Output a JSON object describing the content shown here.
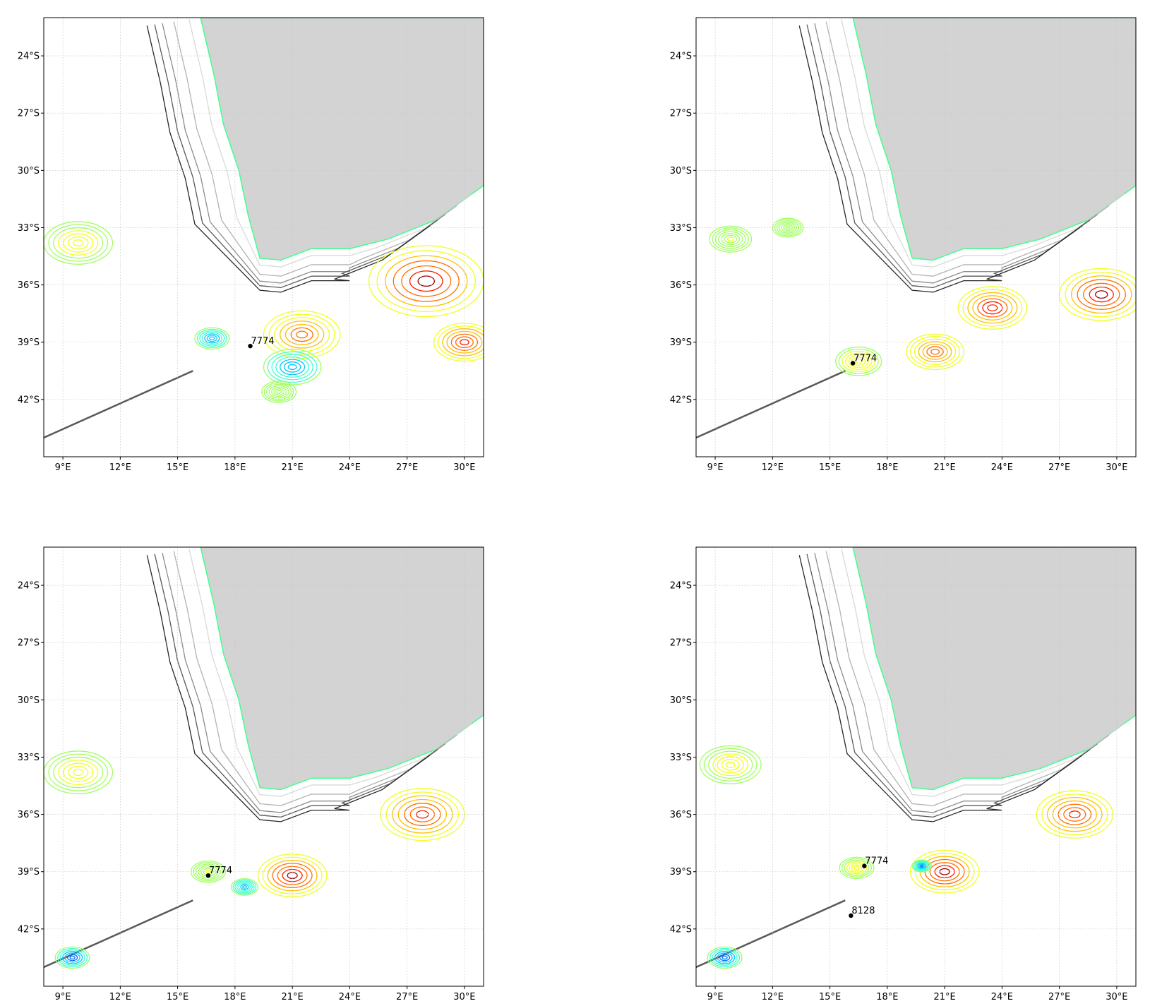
{
  "figure": {
    "land_color": "#d3d3d3",
    "grid_color": "#c8c8c8",
    "frame_color": "#000000",
    "bathymetry_colors": [
      "#d9d9d9",
      "#b3b3b3",
      "#8c8c8c",
      "#595959",
      "#262626"
    ],
    "contour_colormap": [
      "#0000cc",
      "#0070ff",
      "#00c8ff",
      "#40ffd0",
      "#a0ff60",
      "#f0ff20",
      "#ffc000",
      "#ff7000",
      "#ff2000",
      "#a00000"
    ],
    "float_marker_color": "#000000"
  },
  "chart_data": {
    "type": "map",
    "layout": "2x2 panels",
    "lon_range": [
      8,
      31
    ],
    "lat_range": [
      -45,
      -22
    ],
    "x_ticks": [
      "9°E",
      "12°E",
      "15°E",
      "18°E",
      "21°E",
      "24°E",
      "27°E",
      "30°E"
    ],
    "y_ticks": [
      "24°S",
      "27°S",
      "30°S",
      "33°S",
      "36°S",
      "39°S",
      "42°S"
    ],
    "x_tick_values": [
      9,
      12,
      15,
      18,
      21,
      24,
      27,
      30
    ],
    "y_tick_values": [
      -24,
      -27,
      -30,
      -33,
      -36,
      -39,
      -42
    ],
    "grid": true,
    "panels": [
      {
        "floats": [
          {
            "label": "7774",
            "lon": 18.8,
            "lat": -39.2
          }
        ],
        "features": [
          {
            "lon": 28.0,
            "lat": -35.8,
            "level": 0.95,
            "size": 3.0
          },
          {
            "lon": 21.5,
            "lat": -38.6,
            "level": 0.8,
            "size": 2.0
          },
          {
            "lon": 30.0,
            "lat": -39.0,
            "level": 0.85,
            "size": 1.6
          },
          {
            "lon": 9.8,
            "lat": -33.8,
            "level": 0.55,
            "size": 1.8
          },
          {
            "lon": 16.8,
            "lat": -38.8,
            "level": 0.2,
            "size": 0.9
          },
          {
            "lon": 21.0,
            "lat": -40.3,
            "level": 0.18,
            "size": 1.5
          },
          {
            "lon": 20.3,
            "lat": -41.6,
            "level": 0.45,
            "size": 0.9
          }
        ]
      },
      {
        "floats": [
          {
            "label": "7774",
            "lon": 16.2,
            "lat": -40.1
          }
        ],
        "features": [
          {
            "lon": 29.2,
            "lat": -36.5,
            "level": 0.95,
            "size": 2.2
          },
          {
            "lon": 23.5,
            "lat": -37.2,
            "level": 0.9,
            "size": 1.8
          },
          {
            "lon": 20.5,
            "lat": -39.5,
            "level": 0.8,
            "size": 1.5
          },
          {
            "lon": 16.5,
            "lat": -40.0,
            "level": 0.6,
            "size": 1.2
          },
          {
            "lon": 9.8,
            "lat": -33.6,
            "level": 0.5,
            "size": 1.1
          },
          {
            "lon": 12.8,
            "lat": -33.0,
            "level": 0.45,
            "size": 0.8
          }
        ]
      },
      {
        "floats": [
          {
            "label": "7774",
            "lon": 16.6,
            "lat": -39.2
          }
        ],
        "features": [
          {
            "lon": 21.0,
            "lat": -39.2,
            "level": 0.95,
            "size": 1.8
          },
          {
            "lon": 27.8,
            "lat": -36.0,
            "level": 0.85,
            "size": 2.2
          },
          {
            "lon": 9.8,
            "lat": -33.8,
            "level": 0.55,
            "size": 1.8
          },
          {
            "lon": 16.6,
            "lat": -39.0,
            "level": 0.5,
            "size": 0.9
          },
          {
            "lon": 9.5,
            "lat": -43.5,
            "level": 0.1,
            "size": 0.9
          },
          {
            "lon": 18.5,
            "lat": -39.8,
            "level": 0.22,
            "size": 0.7
          }
        ]
      },
      {
        "floats": [
          {
            "label": "7774",
            "lon": 16.8,
            "lat": -38.7
          },
          {
            "label": "8128",
            "lon": 16.1,
            "lat": -41.3
          }
        ],
        "features": [
          {
            "lon": 21.0,
            "lat": -39.0,
            "level": 0.95,
            "size": 1.8
          },
          {
            "lon": 27.8,
            "lat": -36.0,
            "level": 0.88,
            "size": 2.0
          },
          {
            "lon": 9.8,
            "lat": -33.4,
            "level": 0.55,
            "size": 1.6
          },
          {
            "lon": 16.4,
            "lat": -38.8,
            "level": 0.55,
            "size": 0.9
          },
          {
            "lon": 19.8,
            "lat": -38.7,
            "level": 0.15,
            "size": 0.5
          },
          {
            "lon": 9.5,
            "lat": -43.5,
            "level": 0.1,
            "size": 0.9
          }
        ]
      }
    ]
  }
}
